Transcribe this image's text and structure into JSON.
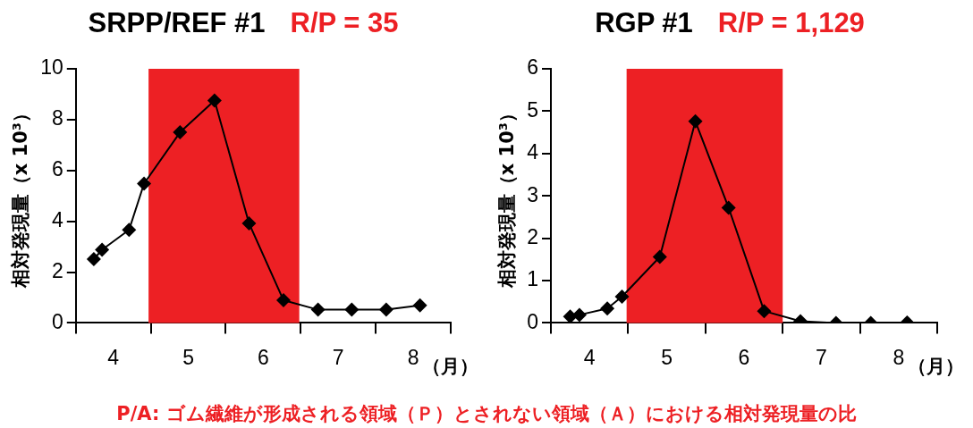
{
  "chart_data": [
    {
      "type": "line",
      "title": "SRPP/REF #1",
      "subtitle": "R/P = 35",
      "ylabel": "相対発現量（x 10³）",
      "xlabel": "（月）",
      "x": [
        3.74,
        3.85,
        4.21,
        4.41,
        4.89,
        5.35,
        5.81,
        6.27,
        6.73,
        7.18,
        7.64,
        8.09
      ],
      "series": [
        {
          "color": "#000000",
          "values": [
            2.51,
            2.88,
            3.66,
            5.48,
            7.5,
            8.75,
            3.92,
            0.89,
            0.52,
            0.52,
            0.52,
            0.69
          ]
        }
      ],
      "xlim": [
        3.5,
        8.5
      ],
      "xticks": [
        {
          "value": 3.5,
          "label": null
        },
        {
          "value": 4,
          "label": "4"
        },
        {
          "value": 4.5,
          "label": null
        },
        {
          "value": 5,
          "label": "5"
        },
        {
          "value": 5.5,
          "label": null
        },
        {
          "value": 6,
          "label": "6"
        },
        {
          "value": 6.5,
          "label": null
        },
        {
          "value": 7,
          "label": "7"
        },
        {
          "value": 7.5,
          "label": null
        },
        {
          "value": 8,
          "label": "8"
        },
        {
          "value": 8.5,
          "label": null
        }
      ],
      "ylim": [
        0,
        10
      ],
      "yticks": [
        0,
        2,
        4,
        6,
        8,
        10
      ],
      "bands": [
        {
          "axis": "x",
          "from": 4.47,
          "to": 6.48,
          "color": "#ed2024"
        }
      ],
      "marker": "diamond",
      "line_style": "solid",
      "grid": false,
      "legend": false,
      "annotations": [
        "P/A: ゴム繊維が形成される領域（Ｐ）とされない領域（Ａ）における相対発現量の比"
      ]
    },
    {
      "type": "line",
      "title": "RGP #1",
      "subtitle": "R/P = 1,129",
      "ylabel": "相対発現量（x 10³）",
      "xlabel": "（月）",
      "x": [
        3.75,
        3.87,
        4.23,
        4.42,
        4.91,
        5.37,
        5.8,
        6.26,
        6.73,
        7.19,
        7.64,
        8.11
      ],
      "series": [
        {
          "color": "#000000",
          "values": [
            0.15,
            0.19,
            0.34,
            0.62,
            1.56,
            4.76,
            2.72,
            0.28,
            0.04,
            0,
            0,
            0.01
          ]
        }
      ],
      "xlim": [
        3.5,
        8.5
      ],
      "xticks": [
        {
          "value": 3.5,
          "label": null
        },
        {
          "value": 4,
          "label": "4"
        },
        {
          "value": 4.5,
          "label": null
        },
        {
          "value": 5,
          "label": "5"
        },
        {
          "value": 5.5,
          "label": null
        },
        {
          "value": 6,
          "label": "6"
        },
        {
          "value": 6.5,
          "label": null
        },
        {
          "value": 7,
          "label": "7"
        },
        {
          "value": 7.5,
          "label": null
        },
        {
          "value": 8,
          "label": "8"
        },
        {
          "value": 8.5,
          "label": null
        }
      ],
      "ylim": [
        0,
        6
      ],
      "yticks": [
        0,
        1,
        2,
        3,
        4,
        5,
        6
      ],
      "bands": [
        {
          "axis": "x",
          "from": 4.48,
          "to": 6.5,
          "color": "#ed2024"
        }
      ],
      "marker": "diamond",
      "line_style": "solid",
      "grid": false,
      "legend": false
    }
  ]
}
